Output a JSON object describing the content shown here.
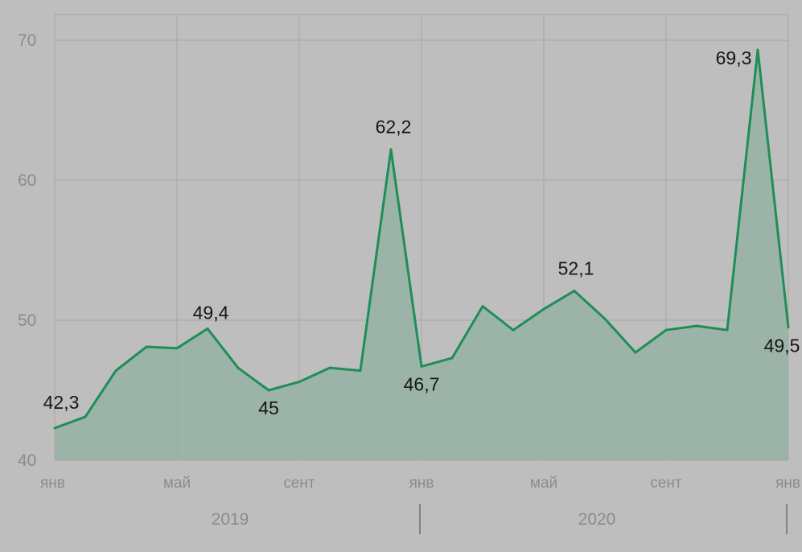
{
  "chart_data": {
    "type": "area",
    "title": "",
    "xlabel": "",
    "ylabel": "",
    "ylim": [
      40,
      72
    ],
    "y_ticks": [
      40,
      50,
      60,
      70
    ],
    "grid": true,
    "x_ticks": [
      {
        "label": "янв",
        "month_index": 0
      },
      {
        "label": "май",
        "month_index": 4
      },
      {
        "label": "сент",
        "month_index": 8
      },
      {
        "label": "янв",
        "month_index": 12
      },
      {
        "label": "май",
        "month_index": 16
      },
      {
        "label": "сент",
        "month_index": 20
      },
      {
        "label": "янв",
        "month_index": 24
      }
    ],
    "years": [
      {
        "label": "2019",
        "start_index": 0,
        "end_index": 12
      },
      {
        "label": "2020",
        "start_index": 12,
        "end_index": 24
      }
    ],
    "x": [
      "янв 2019",
      "фев 2019",
      "мар 2019",
      "апр 2019",
      "май 2019",
      "июн 2019",
      "июл 2019",
      "авг 2019",
      "сент 2019",
      "окт 2019",
      "ноя 2019",
      "дек 2019",
      "янв 2020",
      "фев 2020",
      "мар 2020",
      "апр 2020",
      "май 2020",
      "июн 2020",
      "июл 2020",
      "авг 2020",
      "сент 2020",
      "окт 2020",
      "ноя 2020",
      "дек 2020",
      "янв 2021"
    ],
    "values": [
      42.3,
      43.1,
      46.4,
      48.1,
      48.0,
      49.4,
      46.6,
      45.0,
      45.6,
      46.6,
      46.4,
      62.2,
      46.7,
      47.3,
      51.0,
      49.3,
      50.8,
      52.1,
      50.1,
      47.7,
      49.3,
      49.6,
      49.3,
      69.3,
      49.5
    ],
    "point_labels": [
      {
        "index": 0,
        "text": "42,3"
      },
      {
        "index": 5,
        "text": "49,4"
      },
      {
        "index": 7,
        "text": "45"
      },
      {
        "index": 11,
        "text": "62,2"
      },
      {
        "index": 12,
        "text": "46,7"
      },
      {
        "index": 17,
        "text": "52,1"
      },
      {
        "index": 23,
        "text": "69,3"
      },
      {
        "index": 24,
        "text": "49,5"
      }
    ],
    "colors": {
      "line": "#1e8e57",
      "area": "#96b3a4",
      "background": "#bebebe"
    }
  }
}
